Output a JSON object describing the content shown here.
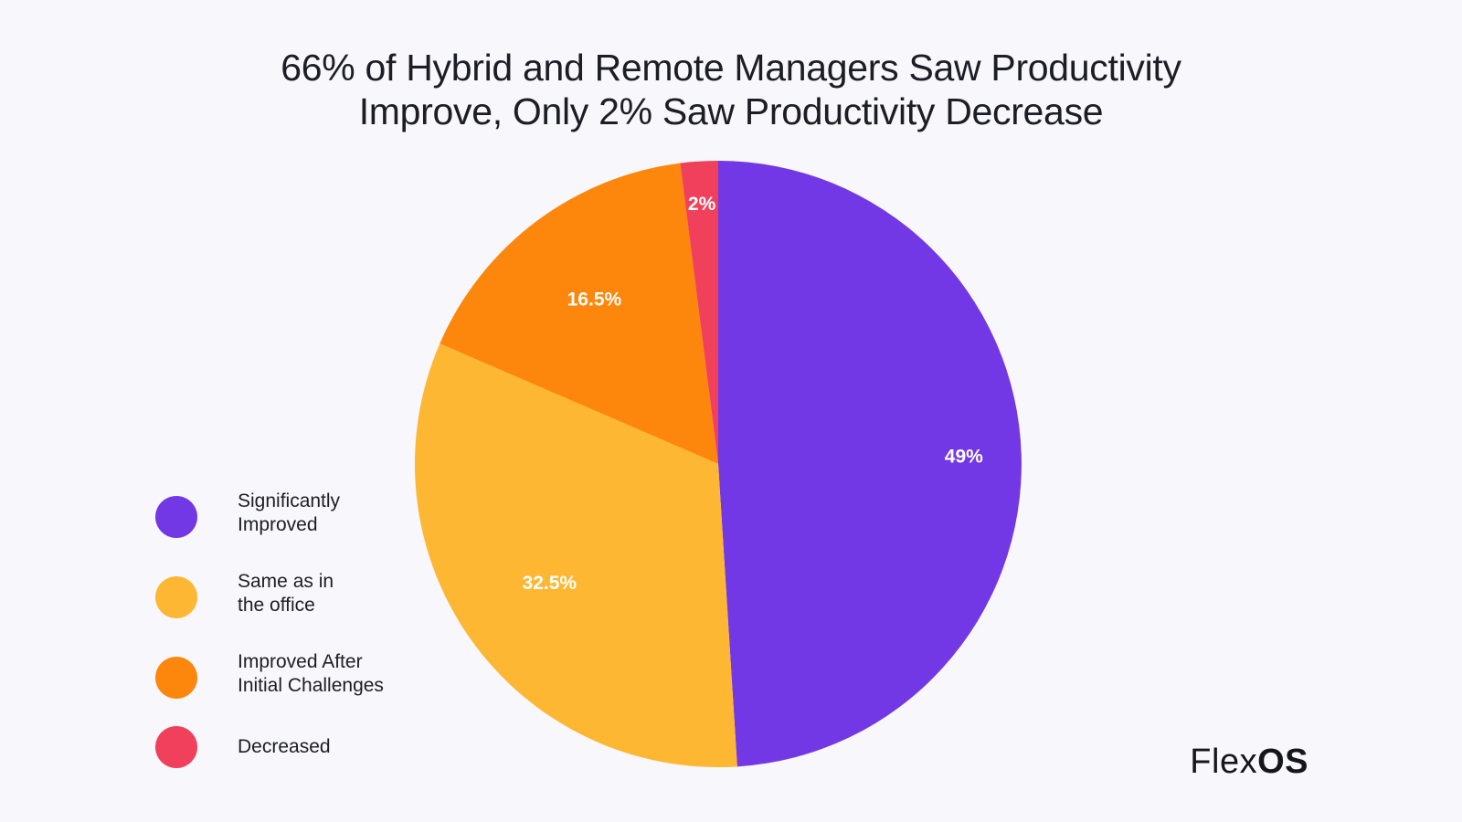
{
  "title": {
    "line1": "66% of Hybrid and Remote Managers Saw Productivity",
    "line2": "Improve, Only 2% Saw Productivity Decrease"
  },
  "chart_data": {
    "type": "pie",
    "title": "66% of Hybrid and Remote Managers Saw Productivity Improve, Only 2% Saw Productivity Decrease",
    "slices": [
      {
        "label": "Significantly Improved",
        "legend_lines": [
          "Significantly",
          "Improved"
        ],
        "value": 49,
        "display": "49%",
        "color": "#7338e6"
      },
      {
        "label": "Same as in the office",
        "legend_lines": [
          "Same as in",
          "the office"
        ],
        "value": 32.5,
        "display": "32.5%",
        "color": "#fdb733"
      },
      {
        "label": "Improved After Initial Challenges",
        "legend_lines": [
          "Improved After",
          "Initial Challenges"
        ],
        "value": 16.5,
        "display": "16.5%",
        "color": "#fd870d"
      },
      {
        "label": "Decreased",
        "legend_lines": [
          "Decreased"
        ],
        "value": 2,
        "display": "2%",
        "color": "#f1405b"
      }
    ],
    "start": "12 o'clock",
    "direction": "clockwise",
    "legend_position": "left"
  },
  "logo": {
    "part1": "Flex",
    "part2": "OS"
  }
}
